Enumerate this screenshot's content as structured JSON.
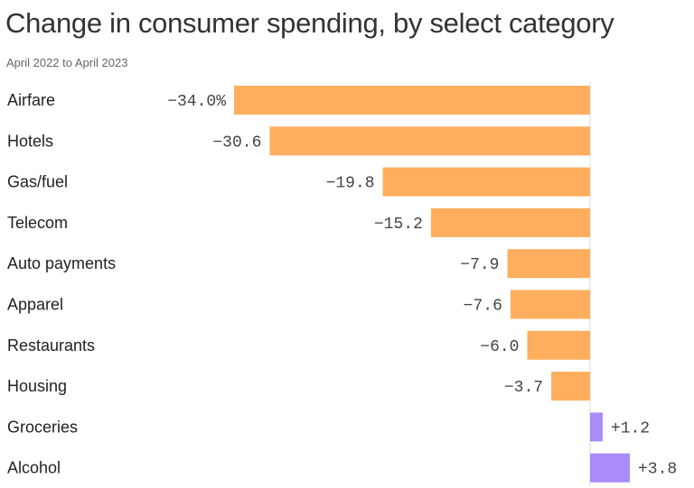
{
  "chart_data": {
    "type": "bar",
    "orientation": "horizontal",
    "title": "Change in consumer spending, by select category",
    "subtitle": "April 2022 to April 2023",
    "categories": [
      "Airfare",
      "Hotels",
      "Gas/fuel",
      "Telecom",
      "Auto payments",
      "Apparel",
      "Restaurants",
      "Housing",
      "Groceries",
      "Alcohol"
    ],
    "values": [
      -34.0,
      -30.6,
      -19.8,
      -15.2,
      -7.9,
      -7.6,
      -6.0,
      -3.7,
      1.2,
      3.8
    ],
    "value_labels": [
      "−34.0%",
      "−30.6",
      "−19.8",
      "−15.2",
      "−7.9",
      "−7.6",
      "−6.0",
      "−3.7",
      "+1.2",
      "+3.8"
    ],
    "colors": {
      "negative": "#FFAE5E",
      "positive": "#A98BFA",
      "baseline": "#DDDDDD"
    },
    "xlim": [
      -34.0,
      9.0
    ],
    "grid": false,
    "legend": "none"
  }
}
